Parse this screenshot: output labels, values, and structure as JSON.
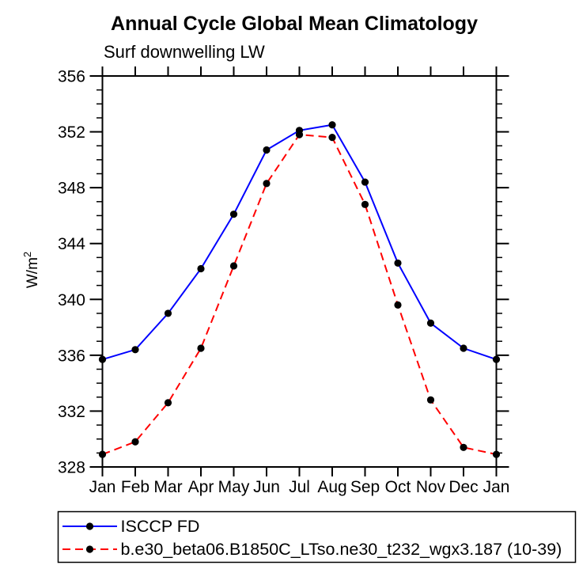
{
  "chart_data": {
    "type": "line",
    "title": "Annual Cycle Global Mean Climatology",
    "subtitle": "Surf downwelling LW",
    "ylabel": {
      "text": "W/m",
      "sup": "2"
    },
    "categories": [
      "Jan",
      "Feb",
      "Mar",
      "Apr",
      "May",
      "Jun",
      "Jul",
      "Aug",
      "Sep",
      "Oct",
      "Nov",
      "Dec",
      "Jan"
    ],
    "ylim": [
      328,
      356
    ],
    "y_ticks": [
      328,
      332,
      336,
      340,
      344,
      348,
      352,
      356
    ],
    "y_major_step": 4,
    "y_minor_step": 1,
    "grid": false,
    "legend_position": "bottom",
    "marker_color": "#000000",
    "axis_color": "#000000",
    "series": [
      {
        "name": "ISCCP FD",
        "color": "#0000ff",
        "style": "solid",
        "values": [
          335.7,
          336.4,
          339.0,
          342.2,
          346.1,
          350.7,
          352.1,
          352.5,
          348.4,
          342.6,
          338.3,
          336.5,
          335.7
        ]
      },
      {
        "name": "b.e30_beta06.B1850C_LTso.ne30_t232_wgx3.187 (10-39)",
        "color": "#ff0000",
        "style": "dashed",
        "values": [
          328.9,
          329.8,
          332.6,
          336.5,
          342.4,
          348.3,
          351.8,
          351.6,
          346.8,
          339.6,
          332.8,
          329.4,
          328.9
        ]
      }
    ]
  }
}
